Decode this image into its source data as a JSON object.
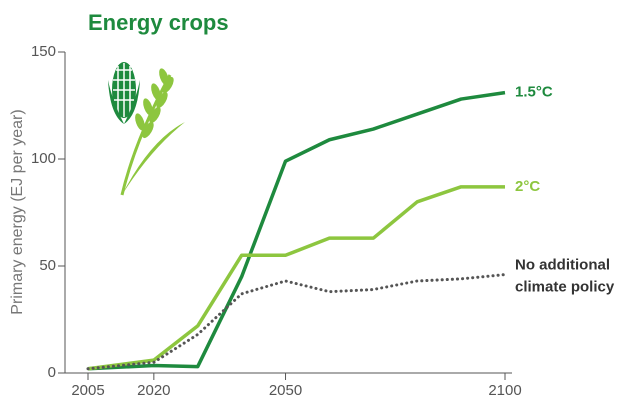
{
  "chart_data": {
    "type": "line",
    "title": "Energy crops",
    "y_label": "Primary energy (EJ per year)",
    "x": [
      2005,
      2020,
      2030,
      2040,
      2050,
      2060,
      2070,
      2080,
      2090,
      2100
    ],
    "series": [
      {
        "name": "1.5°C",
        "color": "#1e8a3e",
        "style": "solid",
        "values": [
          2,
          3.5,
          3,
          45,
          99,
          109,
          114,
          121,
          128,
          131
        ]
      },
      {
        "name": "2°C",
        "color": "#8dc63f",
        "style": "solid",
        "values": [
          2,
          6,
          22,
          55,
          55,
          63,
          63,
          80,
          87,
          87
        ]
      },
      {
        "name": "No additional climate policy",
        "color": "#555555",
        "style": "dotted",
        "values": [
          2,
          5,
          18,
          37,
          43,
          38,
          39,
          43,
          44,
          46
        ]
      }
    ],
    "xlim": [
      2005,
      2100
    ],
    "xticks": [
      2005,
      2020,
      2050,
      2100
    ],
    "ylim": [
      0,
      150
    ],
    "yticks": [
      0,
      50,
      100,
      150
    ]
  }
}
